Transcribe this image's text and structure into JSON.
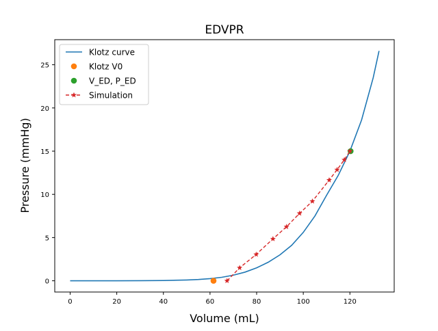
{
  "chart_data": {
    "type": "line",
    "title": "EDVPR",
    "xlabel": "Volume (mL)",
    "ylabel": "Pressure (mmHg)",
    "xlim": [
      -6.6,
      139.0
    ],
    "ylim": [
      -1.3,
      27.9
    ],
    "xticks": [
      0,
      20,
      40,
      60,
      80,
      100,
      120
    ],
    "yticks": [
      0,
      5,
      10,
      15,
      20,
      25
    ],
    "grid": false,
    "legend_position": "top-left",
    "series": [
      {
        "name": "Klotz curve",
        "kind": "line",
        "color": "#1f77b4",
        "x": [
          0,
          10,
          20,
          30,
          40,
          50,
          55,
          60,
          65,
          70,
          75,
          80,
          85,
          90,
          95,
          100,
          105,
          110,
          115,
          120,
          125,
          130,
          132.5
        ],
        "y": [
          0.0,
          0.0,
          0.0,
          0.01,
          0.03,
          0.09,
          0.15,
          0.25,
          0.4,
          0.65,
          1.0,
          1.5,
          2.15,
          3.0,
          4.1,
          5.6,
          7.5,
          9.9,
          12.2,
          15.0,
          18.6,
          23.5,
          26.6
        ]
      },
      {
        "name": "Klotz V0",
        "kind": "point",
        "color": "#ff7f0e",
        "x": [
          61.5
        ],
        "y": [
          0.0
        ]
      },
      {
        "name": "V_ED, P_ED",
        "kind": "point",
        "color": "#2ca02c",
        "x": [
          120.3
        ],
        "y": [
          15.0
        ]
      },
      {
        "name": "Simulation",
        "kind": "dashed-star",
        "color": "#d62728",
        "x": [
          67.3,
          72.7,
          79.8,
          87.0,
          92.8,
          98.4,
          103.9,
          111.1,
          114.5,
          117.6,
          120.0
        ],
        "y": [
          0.0,
          1.5,
          3.05,
          4.85,
          6.25,
          7.8,
          9.2,
          11.65,
          12.85,
          14.0,
          15.0
        ]
      }
    ]
  }
}
